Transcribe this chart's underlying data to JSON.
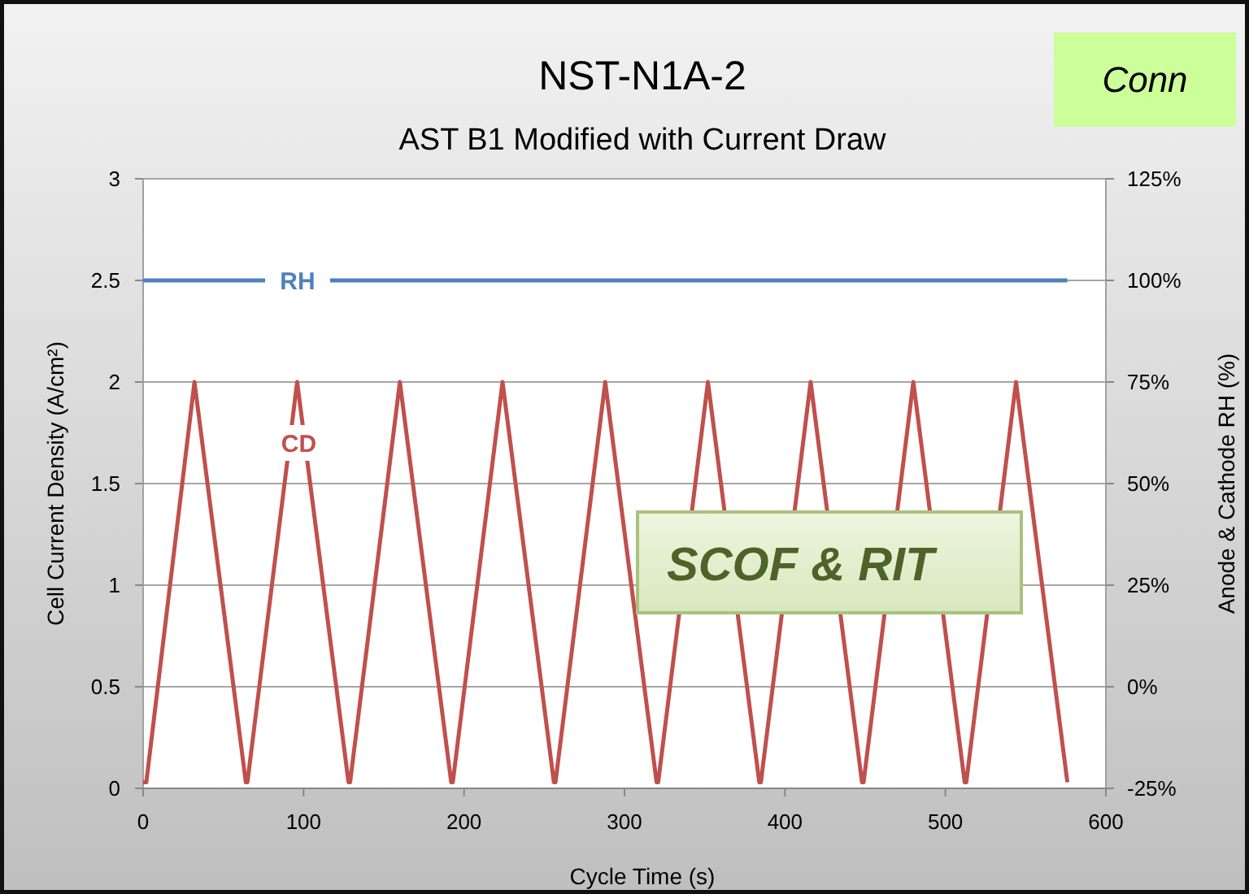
{
  "chart_data": {
    "type": "line",
    "title": "NST-N1A-2",
    "subtitle": "AST B1 Modified with Current Draw",
    "xlabel": "Cycle Time (s)",
    "ylabel": "Cell Current Density (A/cm²)",
    "y2label": "Anode & Cathode RH (%)",
    "xlim": [
      0,
      600
    ],
    "xticks": [
      0,
      100,
      200,
      300,
      400,
      500,
      600
    ],
    "ylim": [
      0,
      3
    ],
    "yticks": [
      0,
      0.5,
      1,
      1.5,
      2,
      2.5,
      3
    ],
    "y2lim": [
      -25,
      125
    ],
    "y2ticks": [
      {
        "value": -25,
        "label": "-25%"
      },
      {
        "value": 0,
        "label": "0%"
      },
      {
        "value": 25,
        "label": "25%"
      },
      {
        "value": 50,
        "label": "50%"
      },
      {
        "value": 75,
        "label": "75%"
      },
      {
        "value": 100,
        "label": "100%"
      },
      {
        "value": 125,
        "label": "125%"
      }
    ],
    "grid": "y",
    "marker": "none",
    "line_style": "solid",
    "series": [
      {
        "name": "RH",
        "color": "#4f81bd",
        "axis": "y2",
        "x": [
          0,
          576
        ],
        "values": [
          100,
          100
        ]
      },
      {
        "name": "CD",
        "color": "#c0504d",
        "x": [
          0,
          2,
          32,
          64,
          65,
          96,
          128,
          129,
          160,
          192,
          193,
          224,
          256,
          257,
          288,
          320,
          321,
          352,
          384,
          385,
          416,
          448,
          449,
          480,
          512,
          513,
          544,
          576
        ],
        "values": [
          0.03,
          0.03,
          2,
          0.03,
          0.03,
          2,
          0.03,
          0.03,
          2,
          0.03,
          0.03,
          2,
          0.03,
          0.03,
          2,
          0.03,
          0.03,
          2,
          0.03,
          0.03,
          2,
          0.03,
          0.03,
          2,
          0.03,
          0.03,
          2,
          0.03
        ]
      }
    ],
    "annotations": [
      "SCOF & RIT",
      "Conn"
    ]
  }
}
